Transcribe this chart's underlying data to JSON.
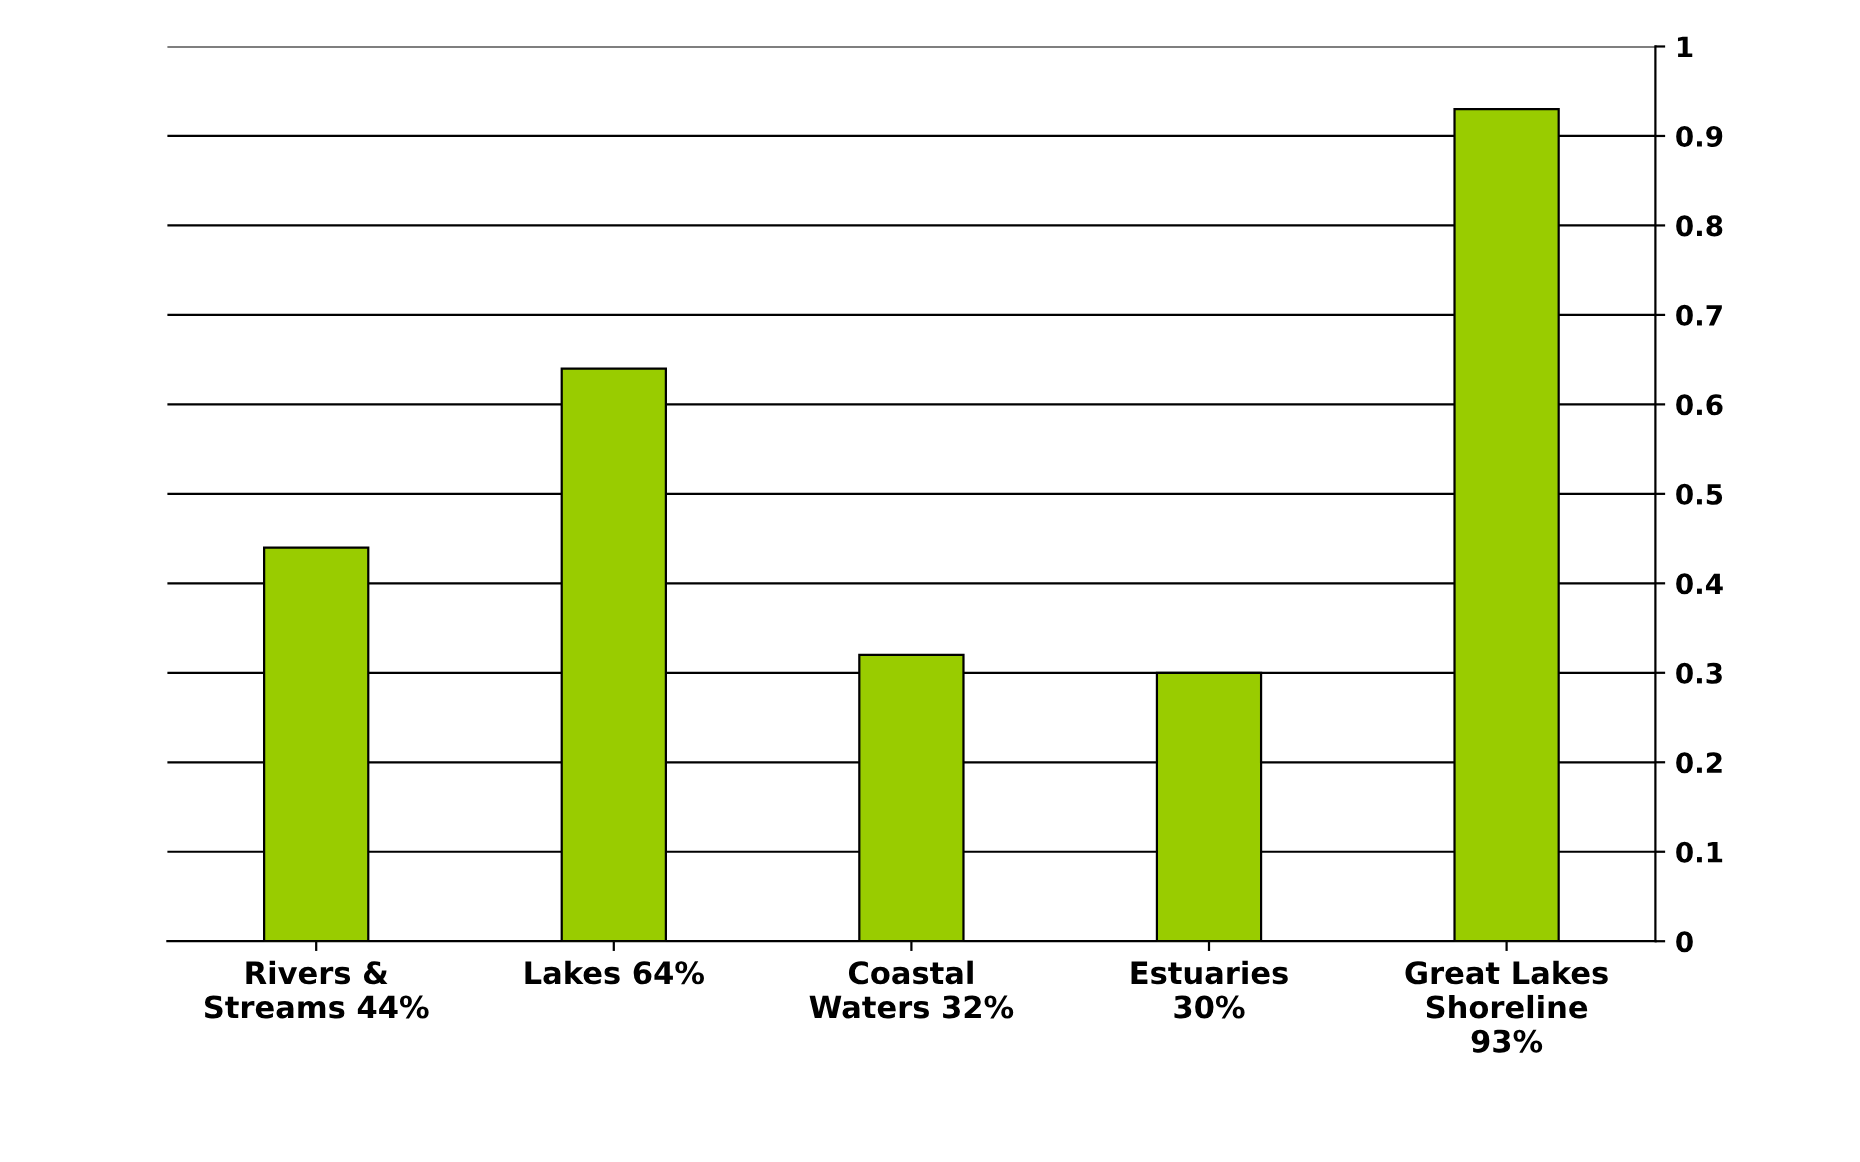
{
  "chart_data": {
    "type": "bar",
    "categories": [
      "Rivers &\nStreams 44%",
      "Lakes 64%",
      "Coastal\nWaters 32%",
      "Estuaries\n30%",
      "Great Lakes\nShoreline\n93%"
    ],
    "values": [
      0.44,
      0.64,
      0.32,
      0.3,
      0.93
    ],
    "color": "#99cc00",
    "ylim": [
      0,
      1
    ],
    "yticks": [
      0,
      0.1,
      0.2,
      0.3,
      0.4,
      0.5,
      0.6,
      0.7,
      0.8,
      0.9,
      1
    ],
    "grid": "y"
  }
}
